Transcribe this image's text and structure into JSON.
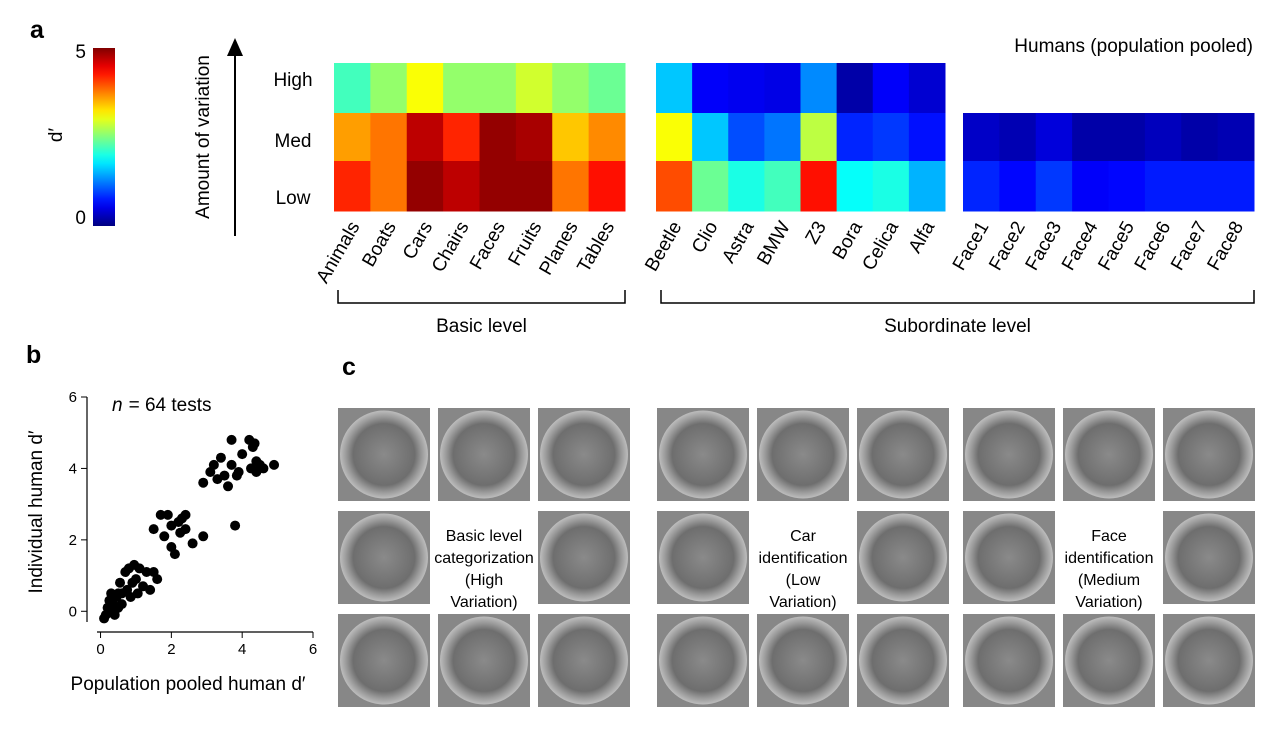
{
  "panel_labels": [
    "a",
    "b",
    "c"
  ],
  "chart_data": [
    {
      "type": "heatmap",
      "title": "Humans (population pooled)",
      "y_label": "Amount of variation",
      "rows": [
        "High",
        "Med",
        "Low"
      ],
      "colorbar": {
        "label": "d′",
        "lim": [
          0,
          5
        ],
        "ticks": [
          0,
          5
        ]
      },
      "levels": [
        {
          "label": "Basic level",
          "blocks": [
            {
              "columns": [
                "Animals",
                "Boats",
                "Cars",
                "Chairs",
                "Faces",
                "Fruits",
                "Planes",
                "Tables"
              ],
              "values": [
                [
                  2.2,
                  2.6,
                  3.1,
                  2.6,
                  2.6,
                  2.9,
                  2.6,
                  2.4
                ],
                [
                  3.6,
                  3.8,
                  4.7,
                  4.2,
                  4.9,
                  4.8,
                  3.4,
                  3.7
                ],
                [
                  4.2,
                  3.8,
                  4.9,
                  4.7,
                  4.9,
                  4.9,
                  3.8,
                  4.3
                ]
              ]
            }
          ]
        },
        {
          "label": "Subordinate level",
          "blocks": [
            {
              "columns": [
                "Beetle",
                "Clio",
                "Astra",
                "BMW",
                "Z3",
                "Bora",
                "Celica",
                "Alfa"
              ],
              "values": [
                [
                  1.6,
                  0.6,
                  0.55,
                  0.5,
                  1.3,
                  0.2,
                  0.6,
                  0.4
                ],
                [
                  3.1,
                  1.6,
                  1.0,
                  1.2,
                  2.8,
                  0.8,
                  0.9,
                  0.7
                ],
                [
                  4.0,
                  2.4,
                  2.0,
                  2.2,
                  4.3,
                  1.9,
                  2.0,
                  1.5
                ]
              ]
            },
            {
              "columns": [
                "Face1",
                "Face2",
                "Face3",
                "Face4",
                "Face5",
                "Face6",
                "Face7",
                "Face8"
              ],
              "values": [
                [
                  null,
                  null,
                  null,
                  null,
                  null,
                  null,
                  null,
                  null
                ],
                [
                  0.35,
                  0.25,
                  0.45,
                  0.2,
                  0.2,
                  0.3,
                  0.2,
                  0.25
                ],
                [
                  0.8,
                  0.65,
                  0.9,
                  0.6,
                  0.65,
                  0.75,
                  0.75,
                  0.75
                ]
              ]
            }
          ]
        }
      ]
    },
    {
      "type": "scatter",
      "x_label": "Population pooled human d′",
      "y_label": "Individual human d′",
      "annotation_var": "n",
      "annotation": "= 64 tests",
      "color": "#000000",
      "xlim": [
        -0.1,
        6
      ],
      "ylim": [
        -0.3,
        6
      ],
      "xticks": [
        0,
        2,
        4,
        6
      ],
      "yticks": [
        0,
        2,
        4,
        6
      ],
      "x": [
        0.1,
        0.15,
        0.2,
        0.25,
        0.3,
        0.3,
        0.35,
        0.4,
        0.45,
        0.5,
        0.5,
        0.55,
        0.6,
        0.6,
        0.7,
        0.75,
        0.8,
        0.85,
        0.9,
        0.95,
        1.0,
        1.05,
        1.1,
        1.2,
        1.3,
        1.4,
        1.5,
        1.5,
        1.6,
        1.7,
        1.8,
        1.9,
        2.0,
        2.0,
        2.1,
        2.2,
        2.25,
        2.3,
        2.4,
        2.4,
        2.6,
        2.9,
        2.9,
        3.1,
        3.2,
        3.3,
        3.4,
        3.5,
        3.6,
        3.7,
        3.7,
        3.8,
        3.9,
        4.0,
        4.2,
        4.25,
        4.3,
        4.35,
        4.4,
        4.4,
        4.5,
        4.6,
        4.9,
        3.85
      ],
      "y": [
        -0.2,
        -0.1,
        0.1,
        0.3,
        0,
        0.5,
        0.2,
        -0.1,
        0.4,
        0.1,
        0.5,
        0.8,
        0.2,
        0.5,
        1.1,
        0.6,
        1.2,
        0.4,
        0.8,
        1.3,
        0.9,
        0.5,
        1.2,
        0.7,
        1.1,
        0.6,
        1.1,
        2.3,
        0.9,
        2.7,
        2.1,
        2.7,
        1.8,
        2.4,
        1.6,
        2.5,
        2.2,
        2.6,
        2.7,
        2.3,
        1.9,
        2.1,
        3.6,
        3.9,
        4.1,
        3.7,
        4.3,
        3.8,
        3.5,
        4.8,
        4.1,
        2.4,
        3.9,
        4.4,
        4.8,
        4.0,
        4.6,
        4.7,
        3.9,
        4.2,
        4.1,
        4.0,
        4.1,
        3.8
      ]
    }
  ],
  "examples": [
    {
      "lines": [
        "Basic level",
        "categorization",
        "(High",
        "Variation)"
      ]
    },
    {
      "lines": [
        "Car",
        "identification",
        "(Low",
        "Variation)"
      ]
    },
    {
      "lines": [
        "Face",
        "identification",
        "(Medium",
        "Variation)"
      ]
    }
  ]
}
